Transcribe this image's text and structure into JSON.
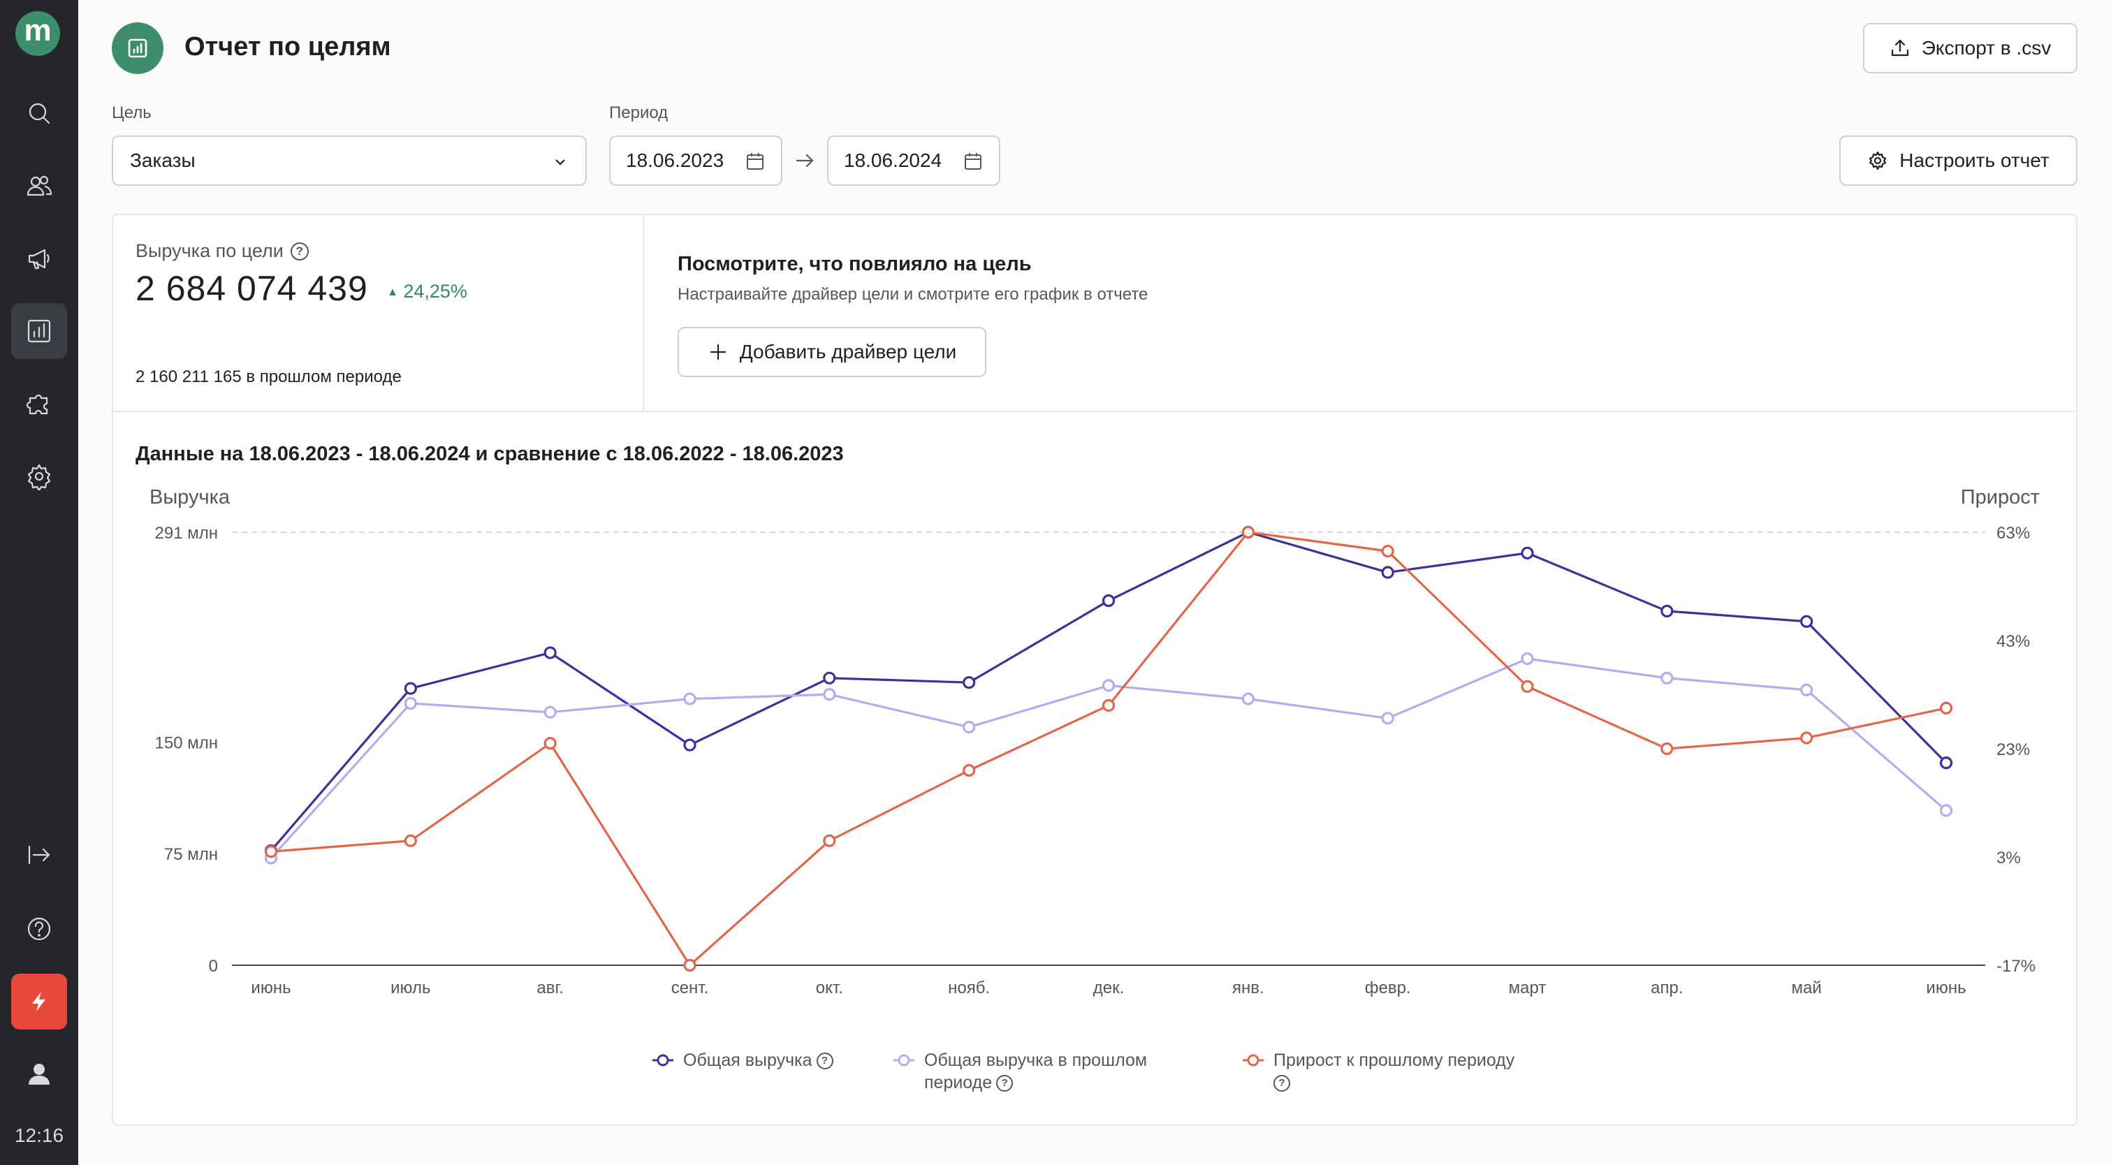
{
  "sidebar": {
    "logo": "m",
    "time": "12:16"
  },
  "header": {
    "title": "Отчет по целям",
    "export_label": "Экспорт в .csv",
    "configure_label": "Настроить отчет"
  },
  "filters": {
    "goal_label": "Цель",
    "goal_value": "Заказы",
    "period_label": "Период",
    "date_from": "18.06.2023",
    "date_to": "18.06.2024"
  },
  "summary": {
    "label": "Выручка по цели",
    "value": "2 684 074 439",
    "change": "24,25%",
    "previous": "2 160 211 165 в прошлом периоде"
  },
  "driver": {
    "title": "Посмотрите, что повлияло на цель",
    "subtitle": "Настраивайте драйвер цели и смотрите его график в отчете",
    "add_label": "Добавить драйвер цели"
  },
  "chart_heading": "Данные на 18.06.2023 - 18.06.2024 и сравнение с 18.06.2022 - 18.06.2023",
  "colors": {
    "accent": "#3e8e6e",
    "revenue": "#3f2f9a",
    "prev_revenue": "#b6aaf0",
    "growth": "#e2674a",
    "positive": "#2f8b5e",
    "sidebar_bg": "#25262b",
    "bolt": "#e8493a"
  },
  "chart_data": {
    "type": "line",
    "categories": [
      "июнь",
      "июль",
      "авг.",
      "сент.",
      "окт.",
      "нояб.",
      "дек.",
      "янв.",
      "февр.",
      "март",
      "апр.",
      "май",
      "июнь"
    ],
    "left_axis": {
      "label": "Выручка",
      "range": [
        0,
        291
      ],
      "ticks": [
        {
          "value": 0,
          "label": "0"
        },
        {
          "value": 75,
          "label": "75 млн"
        },
        {
          "value": 150,
          "label": "150 млн"
        },
        {
          "value": 291,
          "label": "291 млн"
        }
      ]
    },
    "right_axis": {
      "label": "Прирост",
      "range": [
        -17,
        63
      ],
      "ticks": [
        {
          "value": -17,
          "label": "-17%"
        },
        {
          "value": 3,
          "label": "3%"
        },
        {
          "value": 23,
          "label": "23%"
        },
        {
          "value": 43,
          "label": "43%"
        },
        {
          "value": 63,
          "label": "63%"
        }
      ]
    },
    "series": [
      {
        "name": "Общая выручка",
        "axis": "left",
        "color": "#3f2f9a",
        "values": [
          77,
          186,
          210,
          148,
          193,
          190,
          245,
          291,
          264,
          277,
          238,
          231,
          136
        ]
      },
      {
        "name": "Общая выручка в прошлом периоде",
        "axis": "left",
        "color": "#b6aaf0",
        "values": [
          72,
          176,
          170,
          179,
          182,
          160,
          188,
          179,
          166,
          206,
          193,
          185,
          104
        ]
      },
      {
        "name": "Прирост к прошлому периоду",
        "axis": "right",
        "color": "#e2674a",
        "values": [
          4,
          6,
          24,
          -17,
          6,
          19,
          31,
          63,
          59.5,
          34.5,
          23,
          25,
          30.5
        ]
      }
    ],
    "legend": [
      {
        "label": "Общая выручка"
      },
      {
        "label": "Общая выручка в прошлом периоде"
      },
      {
        "label": "Прирост к прошлому периоду"
      }
    ]
  }
}
